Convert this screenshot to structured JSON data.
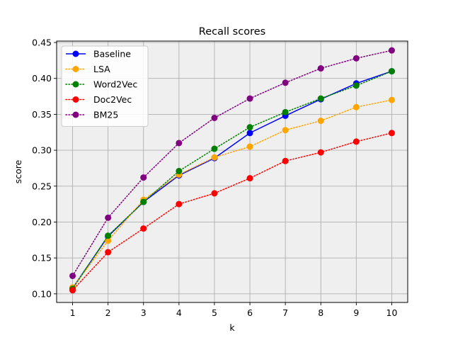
{
  "chart_data": {
    "type": "line",
    "title": "Recall scores",
    "xlabel": "k",
    "ylabel": "score",
    "x": [
      1,
      2,
      3,
      4,
      5,
      6,
      7,
      8,
      9,
      10
    ],
    "xlim": [
      0.55,
      10.45
    ],
    "ylim": [
      0.088,
      0.452
    ],
    "xticks": [
      "1",
      "2",
      "3",
      "4",
      "5",
      "6",
      "7",
      "8",
      "9",
      "10"
    ],
    "yticks": [
      "0.10",
      "0.15",
      "0.20",
      "0.25",
      "0.30",
      "0.35",
      "0.40",
      "0.45"
    ],
    "ytick_values": [
      0.1,
      0.15,
      0.2,
      0.25,
      0.3,
      0.35,
      0.4,
      0.45
    ],
    "grid": true,
    "legend_position": "top-left",
    "plot_background": "#efefef",
    "series": [
      {
        "name": "Baseline",
        "color": "#0000ff",
        "linestyle": "solid",
        "marker": "circle",
        "values": [
          0.108,
          0.18,
          0.228,
          0.265,
          0.289,
          0.324,
          0.348,
          0.371,
          0.393,
          0.41
        ]
      },
      {
        "name": "LSA",
        "color": "#ffa500",
        "linestyle": "dotted",
        "marker": "circle",
        "values": [
          0.109,
          0.174,
          0.231,
          0.266,
          0.29,
          0.305,
          0.328,
          0.341,
          0.36,
          0.37
        ]
      },
      {
        "name": "Word2Vec",
        "color": "#008000",
        "linestyle": "dotted",
        "marker": "circle",
        "values": [
          0.107,
          0.181,
          0.228,
          0.271,
          0.302,
          0.332,
          0.353,
          0.372,
          0.39,
          0.41
        ]
      },
      {
        "name": "Doc2Vec",
        "color": "#ff0000",
        "linestyle": "dotted",
        "marker": "circle",
        "values": [
          0.105,
          0.158,
          0.191,
          0.225,
          0.24,
          0.261,
          0.285,
          0.297,
          0.312,
          0.324
        ]
      },
      {
        "name": "BM25",
        "color": "#800080",
        "linestyle": "dotted",
        "marker": "circle",
        "values": [
          0.125,
          0.206,
          0.262,
          0.31,
          0.345,
          0.372,
          0.394,
          0.414,
          0.428,
          0.439
        ]
      }
    ]
  }
}
